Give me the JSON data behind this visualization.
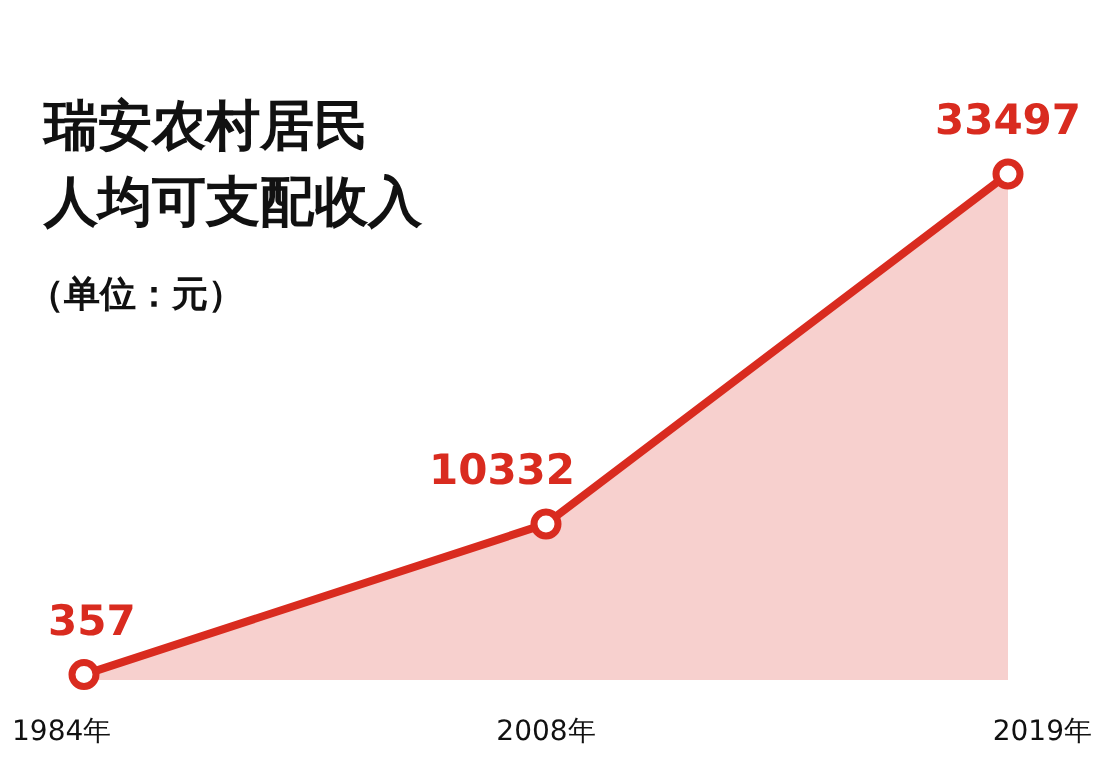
{
  "chart_data": {
    "type": "area",
    "title": "瑞安农村居民人均可支配收入",
    "subtitle": "（单位：元）",
    "categories": [
      "1984年",
      "2008年",
      "2019年"
    ],
    "values": [
      357,
      10332,
      33497
    ],
    "color": "#d92b1f",
    "marker": "circle",
    "data_labels": true
  }
}
